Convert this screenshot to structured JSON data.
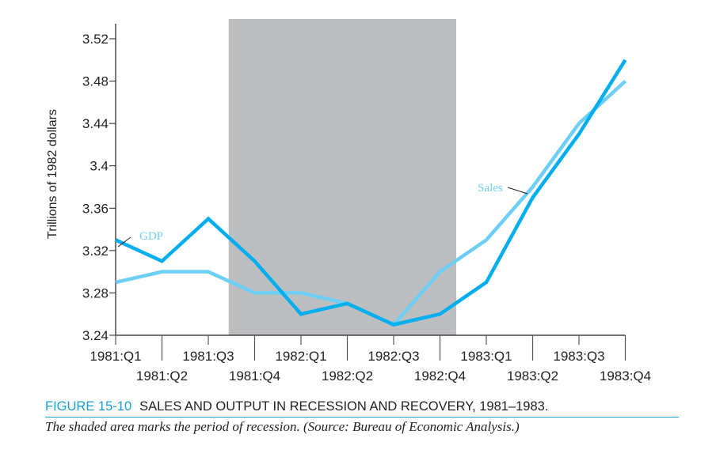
{
  "chart_data": {
    "type": "line",
    "ylabel": "Trillions of 1982 dollars",
    "xlabel": "",
    "categories": [
      "1981:Q1",
      "1981:Q2",
      "1981:Q3",
      "1981:Q4",
      "1982:Q1",
      "1982:Q2",
      "1982:Q3",
      "1982:Q4",
      "1983:Q1",
      "1983:Q2",
      "1983:Q3",
      "1983:Q4"
    ],
    "yticks": [
      "3.24",
      "3.28",
      "3.32",
      "3.36",
      "3.4",
      "3.44",
      "3.48",
      "3.52"
    ],
    "ylim": [
      3.24,
      3.52
    ],
    "grid": false,
    "recession_shading": {
      "from": "1981:Q3-Q4",
      "to": "1982:Q4-1983:Q1",
      "color": "#bcbec0"
    },
    "series": [
      {
        "name": "GDP",
        "color": "#00aeef",
        "values": [
          3.33,
          3.31,
          3.35,
          3.31,
          3.26,
          3.27,
          3.25,
          3.26,
          3.29,
          3.37,
          3.43,
          3.5
        ]
      },
      {
        "name": "Sales",
        "color": "#6dcff6",
        "values": [
          3.29,
          3.3,
          3.3,
          3.28,
          3.28,
          3.27,
          3.25,
          3.3,
          3.33,
          3.38,
          3.44,
          3.48
        ]
      }
    ]
  },
  "caption": {
    "figure_number": "FIGURE 15-10",
    "title": "SALES AND OUTPUT IN RECESSION AND RECOVERY, 1981–1983.",
    "note": "The shaded area marks the period of recession. (Source: Bureau of Economic Analysis.)"
  }
}
